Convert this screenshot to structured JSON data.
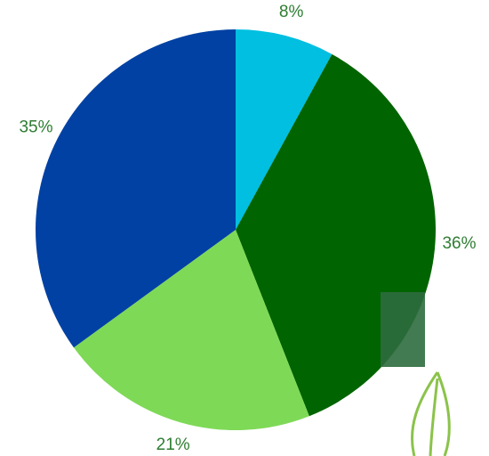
{
  "chart_data": {
    "type": "pie",
    "values": [
      8,
      36,
      21,
      35
    ],
    "value_labels": [
      "8%",
      "36%",
      "21%",
      "35%"
    ],
    "colors": [
      "#00bfe0",
      "#006400",
      "#7ed957",
      "#0041a3"
    ],
    "label_color": "#2e7d32"
  }
}
